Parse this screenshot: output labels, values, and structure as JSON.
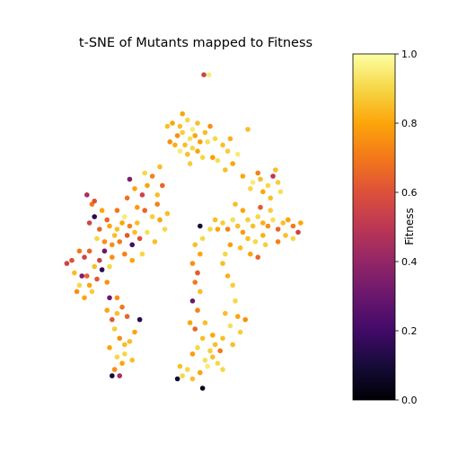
{
  "chart_data": {
    "type": "scatter",
    "title": "t-SNE of Mutants mapped to Fitness",
    "xlabel": "",
    "ylabel": "",
    "axes_visible": false,
    "colormap": "inferno",
    "colorbar": {
      "label": "Fitness",
      "range": [
        0.0,
        1.0
      ],
      "ticks": [
        0.0,
        0.2,
        0.4,
        0.6,
        0.8,
        1.0
      ],
      "tick_labels": [
        "0.0",
        "0.2",
        "0.4",
        "0.6",
        "0.8",
        "1.0"
      ],
      "position": "right"
    },
    "xlim": [
      0,
      1
    ],
    "ylim": [
      0,
      1
    ],
    "points": [
      [
        0.525,
        0.985,
        0.55
      ],
      [
        0.545,
        0.985,
        0.95
      ],
      [
        0.4,
        0.83,
        0.8
      ],
      [
        0.43,
        0.82,
        0.85
      ],
      [
        0.46,
        0.84,
        0.9
      ],
      [
        0.48,
        0.81,
        0.95
      ],
      [
        0.5,
        0.83,
        0.85
      ],
      [
        0.42,
        0.79,
        0.75
      ],
      [
        0.44,
        0.8,
        0.88
      ],
      [
        0.47,
        0.78,
        0.92
      ],
      [
        0.49,
        0.79,
        0.8
      ],
      [
        0.51,
        0.77,
        0.78
      ],
      [
        0.45,
        0.76,
        0.85
      ],
      [
        0.48,
        0.75,
        0.9
      ],
      [
        0.43,
        0.74,
        0.95
      ],
      [
        0.46,
        0.73,
        0.85
      ],
      [
        0.5,
        0.74,
        0.8
      ],
      [
        0.41,
        0.76,
        0.82
      ],
      [
        0.53,
        0.8,
        0.85
      ],
      [
        0.55,
        0.82,
        0.75
      ],
      [
        0.57,
        0.78,
        0.9
      ],
      [
        0.6,
        0.76,
        0.85
      ],
      [
        0.62,
        0.74,
        0.88
      ],
      [
        0.58,
        0.71,
        0.92
      ],
      [
        0.64,
        0.7,
        0.8
      ],
      [
        0.66,
        0.73,
        0.95
      ],
      [
        0.61,
        0.68,
        0.85
      ],
      [
        0.56,
        0.72,
        0.78
      ],
      [
        0.63,
        0.78,
        0.82
      ],
      [
        0.52,
        0.72,
        0.9
      ],
      [
        0.47,
        0.7,
        0.88
      ],
      [
        0.7,
        0.81,
        0.85
      ],
      [
        0.44,
        0.86,
        0.8
      ],
      [
        0.39,
        0.77,
        0.75
      ],
      [
        0.38,
        0.82,
        0.85
      ],
      [
        0.54,
        0.77,
        0.92
      ],
      [
        0.68,
        0.66,
        0.8
      ],
      [
        0.72,
        0.64,
        0.95
      ],
      [
        0.75,
        0.65,
        0.85
      ],
      [
        0.78,
        0.63,
        0.9
      ],
      [
        0.8,
        0.66,
        0.5
      ],
      [
        0.82,
        0.64,
        0.88
      ],
      [
        0.76,
        0.61,
        0.8
      ],
      [
        0.79,
        0.59,
        0.85
      ],
      [
        0.74,
        0.67,
        0.72
      ],
      [
        0.83,
        0.61,
        0.92
      ],
      [
        0.81,
        0.68,
        0.85
      ],
      [
        0.71,
        0.62,
        0.9
      ],
      [
        0.06,
        0.6,
        0.45
      ],
      [
        0.08,
        0.57,
        0.7
      ],
      [
        0.09,
        0.53,
        0.15
      ],
      [
        0.07,
        0.51,
        0.55
      ],
      [
        0.11,
        0.49,
        0.65
      ],
      [
        0.13,
        0.45,
        0.75
      ],
      [
        0.15,
        0.5,
        0.8
      ],
      [
        0.17,
        0.47,
        0.85
      ],
      [
        0.12,
        0.55,
        0.8
      ],
      [
        0.14,
        0.52,
        0.65
      ],
      [
        0.1,
        0.46,
        0.9
      ],
      [
        0.16,
        0.44,
        0.75
      ],
      [
        0.18,
        0.49,
        0.85
      ],
      [
        0.2,
        0.51,
        0.8
      ],
      [
        0.19,
        0.45,
        0.7
      ],
      [
        0.22,
        0.47,
        0.62
      ],
      [
        0.21,
        0.53,
        0.95
      ],
      [
        0.23,
        0.5,
        0.72
      ],
      [
        0.13,
        0.42,
        0.85
      ],
      [
        0.16,
        0.4,
        0.75
      ],
      [
        0.24,
        0.44,
        0.2
      ],
      [
        0.25,
        0.48,
        0.85
      ],
      [
        0.18,
        0.55,
        0.7
      ],
      [
        0.09,
        0.58,
        0.6
      ],
      [
        0.26,
        0.51,
        0.85
      ],
      [
        0.27,
        0.46,
        0.6
      ],
      [
        0.28,
        0.41,
        0.9
      ],
      [
        0.21,
        0.41,
        0.72
      ],
      [
        0.24,
        0.39,
        0.8
      ],
      [
        0.15,
        0.37,
        0.9
      ],
      [
        0.29,
        0.55,
        0.65
      ],
      [
        0.32,
        0.53,
        0.88
      ],
      [
        0.35,
        0.52,
        0.8
      ],
      [
        0.34,
        0.57,
        0.72
      ],
      [
        0.37,
        0.49,
        0.9
      ],
      [
        0.38,
        0.54,
        0.85
      ],
      [
        0.26,
        0.56,
        0.78
      ],
      [
        0.3,
        0.48,
        0.92
      ],
      [
        0.33,
        0.45,
        0.85
      ],
      [
        0.28,
        0.6,
        0.55
      ],
      [
        0.3,
        0.63,
        0.8
      ],
      [
        0.32,
        0.66,
        0.72
      ],
      [
        0.35,
        0.69,
        0.85
      ],
      [
        0.36,
        0.63,
        0.65
      ],
      [
        0.29,
        0.67,
        0.9
      ],
      [
        0.34,
        0.6,
        0.85
      ],
      [
        0.22,
        0.59,
        0.68
      ],
      [
        0.25,
        0.62,
        0.8
      ],
      [
        0.23,
        0.65,
        0.35
      ],
      [
        0.55,
        0.49,
        0.9
      ],
      [
        0.57,
        0.52,
        0.85
      ],
      [
        0.58,
        0.49,
        0.8
      ],
      [
        0.6,
        0.51,
        0.88
      ],
      [
        0.62,
        0.49,
        0.72
      ],
      [
        0.64,
        0.52,
        0.92
      ],
      [
        0.66,
        0.5,
        0.85
      ],
      [
        0.68,
        0.48,
        0.78
      ],
      [
        0.7,
        0.52,
        0.88
      ],
      [
        0.72,
        0.5,
        0.85
      ],
      [
        0.74,
        0.53,
        0.9
      ],
      [
        0.76,
        0.51,
        0.82
      ],
      [
        0.78,
        0.5,
        0.75
      ],
      [
        0.8,
        0.52,
        0.92
      ],
      [
        0.82,
        0.49,
        0.65
      ],
      [
        0.84,
        0.51,
        0.85
      ],
      [
        0.86,
        0.52,
        0.8
      ],
      [
        0.88,
        0.5,
        0.7
      ],
      [
        0.9,
        0.48,
        0.55
      ],
      [
        0.7,
        0.46,
        0.85
      ],
      [
        0.73,
        0.45,
        0.9
      ],
      [
        0.76,
        0.47,
        0.82
      ],
      [
        0.79,
        0.55,
        0.88
      ],
      [
        0.68,
        0.55,
        0.8
      ],
      [
        0.65,
        0.57,
        0.85
      ],
      [
        0.63,
        0.44,
        0.78
      ],
      [
        0.61,
        0.41,
        0.9
      ],
      [
        0.67,
        0.43,
        0.85
      ],
      [
        0.71,
        0.41,
        0.8
      ],
      [
        0.74,
        0.4,
        0.65
      ],
      [
        0.77,
        0.44,
        0.88
      ],
      [
        0.82,
        0.45,
        0.72
      ],
      [
        0.85,
        0.47,
        0.85
      ],
      [
        0.88,
        0.46,
        0.9
      ],
      [
        0.91,
        0.51,
        0.8
      ],
      [
        0.75,
        0.56,
        0.62
      ],
      [
        0.6,
        0.38,
        0.85
      ],
      [
        0.62,
        0.34,
        0.82
      ],
      [
        0.64,
        0.31,
        0.88
      ],
      [
        0.65,
        0.26,
        0.9
      ],
      [
        0.61,
        0.22,
        0.85
      ],
      [
        0.66,
        0.21,
        0.8
      ],
      [
        0.63,
        0.18,
        0.92
      ],
      [
        0.6,
        0.14,
        0.85
      ],
      [
        0.59,
        0.1,
        0.7
      ],
      [
        0.64,
        0.12,
        0.85
      ],
      [
        0.67,
        0.16,
        0.88
      ],
      [
        0.69,
        0.2,
        0.75
      ],
      [
        0.58,
        0.06,
        0.9
      ],
      [
        0.56,
        0.08,
        0.85
      ],
      [
        0.6,
        0.04,
        0.9
      ],
      [
        0.52,
        0.46,
        0.9
      ],
      [
        0.49,
        0.44,
        0.85
      ],
      [
        0.51,
        0.41,
        0.8
      ],
      [
        0.48,
        0.38,
        0.75
      ],
      [
        0.5,
        0.35,
        0.62
      ],
      [
        0.49,
        0.32,
        0.7
      ],
      [
        0.51,
        0.29,
        0.85
      ],
      [
        0.48,
        0.26,
        0.3
      ],
      [
        0.5,
        0.23,
        0.72
      ],
      [
        0.47,
        0.19,
        0.8
      ],
      [
        0.49,
        0.17,
        0.65
      ],
      [
        0.52,
        0.14,
        0.85
      ],
      [
        0.5,
        0.11,
        0.9
      ],
      [
        0.48,
        0.09,
        0.78
      ],
      [
        0.53,
        0.07,
        0.92
      ],
      [
        0.55,
        0.1,
        0.88
      ],
      [
        0.57,
        0.12,
        0.85
      ],
      [
        0.54,
        0.05,
        0.95
      ],
      [
        0.51,
        0.03,
        0.8
      ],
      [
        0.48,
        0.01,
        0.85
      ],
      [
        0.46,
        0.04,
        0.9
      ],
      [
        0.44,
        0.02,
        0.9
      ],
      [
        0.42,
        0.01,
        0.1
      ],
      [
        0.43,
        0.05,
        0.85
      ],
      [
        0.52,
        -0.02,
        0.05
      ],
      [
        0.56,
        0.15,
        0.8
      ],
      [
        0.53,
        0.19,
        0.85
      ],
      [
        0.51,
        0.5,
        0.1
      ],
      [
        -0.02,
        0.38,
        0.55
      ],
      [
        0.0,
        0.39,
        0.6
      ],
      [
        0.03,
        0.42,
        0.7
      ],
      [
        0.05,
        0.4,
        0.55
      ],
      [
        0.07,
        0.42,
        0.65
      ],
      [
        0.09,
        0.37,
        0.85
      ],
      [
        0.11,
        0.39,
        0.55
      ],
      [
        0.13,
        0.42,
        0.3
      ],
      [
        0.04,
        0.34,
        0.35
      ],
      [
        0.07,
        0.31,
        0.8
      ],
      [
        0.1,
        0.33,
        0.62
      ],
      [
        0.12,
        0.36,
        0.15
      ],
      [
        0.02,
        0.29,
        0.75
      ],
      [
        0.05,
        0.27,
        0.8
      ],
      [
        0.08,
        0.29,
        0.88
      ],
      [
        0.14,
        0.32,
        0.75
      ],
      [
        0.15,
        0.27,
        0.3
      ],
      [
        0.03,
        0.31,
        0.9
      ],
      [
        0.06,
        0.34,
        0.65
      ],
      [
        0.01,
        0.35,
        0.85
      ],
      [
        0.14,
        0.23,
        0.8
      ],
      [
        0.16,
        0.2,
        0.62
      ],
      [
        0.18,
        0.22,
        0.85
      ],
      [
        0.2,
        0.24,
        0.7
      ],
      [
        0.22,
        0.21,
        0.65
      ],
      [
        0.17,
        0.17,
        0.88
      ],
      [
        0.19,
        0.14,
        0.75
      ],
      [
        0.21,
        0.12,
        0.85
      ],
      [
        0.15,
        0.11,
        0.8
      ],
      [
        0.18,
        0.08,
        0.9
      ],
      [
        0.2,
        0.06,
        0.8
      ],
      [
        0.17,
        0.04,
        0.75
      ],
      [
        0.19,
        0.02,
        0.45
      ],
      [
        0.21,
        0.09,
        0.9
      ],
      [
        0.23,
        0.13,
        0.85
      ],
      [
        0.25,
        0.16,
        0.8
      ],
      [
        0.27,
        0.2,
        0.15
      ],
      [
        0.24,
        0.07,
        0.85
      ],
      [
        0.16,
        0.02,
        0.1
      ],
      [
        0.18,
        0.27,
        0.75
      ]
    ]
  }
}
